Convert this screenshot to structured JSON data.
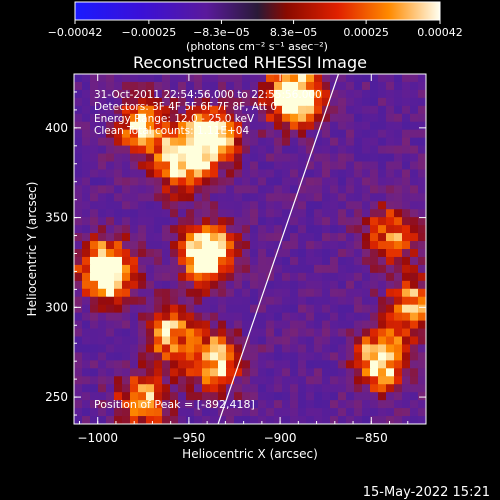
{
  "chart_data": {
    "type": "heatmap",
    "title": "Reconstructed RHESSI Image",
    "xlabel": "Heliocentric X (arcsec)",
    "ylabel": "Heliocentric Y (arcsec)",
    "xlim": [
      -1013,
      -820
    ],
    "ylim": [
      235,
      430
    ],
    "xticks": [
      -1000,
      -950,
      -900,
      -850
    ],
    "yticks": [
      250,
      300,
      350,
      400
    ],
    "xtick_labels": [
      "−1000",
      "−950",
      "−900",
      "−850"
    ],
    "ytick_labels": [
      "250",
      "300",
      "350",
      "400"
    ],
    "colorbar": {
      "min": -0.00042,
      "max": 0.00042,
      "tick_labels": [
        "−0.00042",
        "−0.00025",
        "−8.3e−05",
        "8.3e−05",
        "0.00025",
        "0.00042"
      ],
      "tick_values": [
        -0.00042,
        -0.00025,
        -8.3e-05,
        8.3e-05,
        0.00025,
        0.00042
      ],
      "units_label": "(photons cm⁻² s⁻¹ asec⁻²)"
    },
    "info_lines": [
      "31-Oct-2011 22:54:56.000 to 22:55:56.000",
      "Detectors: 3F 4F 5F 6F 7F 8F, Att 0",
      "Energy Range: 12.0 - 25.0 keV",
      "Clean     Total counts: 1.11E+04"
    ],
    "peak_label": "Position of Peak = [-892,418]",
    "peak": [
      -892,
      418
    ],
    "bright_sources": [
      {
        "x": -995,
        "y": 320,
        "level": 0.95
      },
      {
        "x": -940,
        "y": 330,
        "level": 0.95
      },
      {
        "x": -937,
        "y": 395,
        "level": 0.8
      },
      {
        "x": -955,
        "y": 380,
        "level": 0.7
      },
      {
        "x": -892,
        "y": 418,
        "level": 1.0
      },
      {
        "x": -975,
        "y": 400,
        "level": 0.6
      },
      {
        "x": -845,
        "y": 270,
        "level": 0.75
      },
      {
        "x": -828,
        "y": 300,
        "level": 0.6
      },
      {
        "x": -935,
        "y": 270,
        "level": 0.65
      },
      {
        "x": -975,
        "y": 248,
        "level": 0.55
      },
      {
        "x": -960,
        "y": 285,
        "level": 0.55
      },
      {
        "x": -840,
        "y": 340,
        "level": 0.5
      }
    ],
    "limb_line": {
      "x": [
        -934,
        -868
      ],
      "y": [
        235,
        430
      ]
    },
    "timestamp": "15-May-2022 15:21"
  }
}
